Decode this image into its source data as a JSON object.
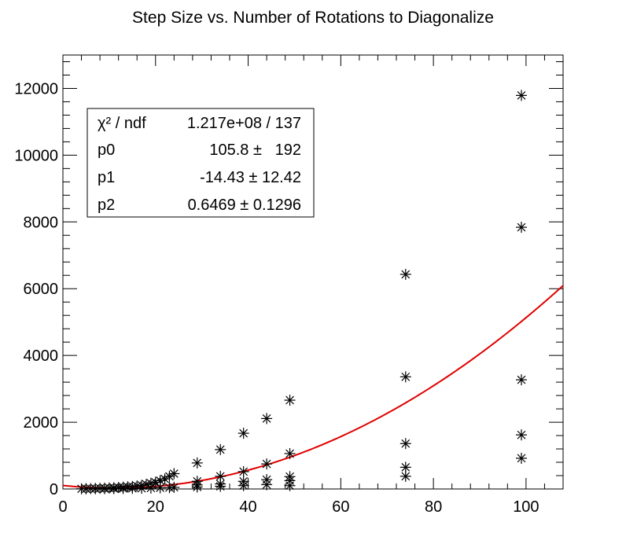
{
  "chart_data": {
    "type": "scatter",
    "title": "Step Size vs. Number of Rotations to Diagonalize",
    "xlabel": "",
    "ylabel": "",
    "xlim": [
      0,
      108
    ],
    "ylim": [
      0,
      13000
    ],
    "grid": false,
    "x_ticks": [
      0,
      20,
      40,
      60,
      80,
      100
    ],
    "y_ticks": [
      0,
      2000,
      4000,
      6000,
      8000,
      10000,
      12000
    ],
    "x_tick_labels": [
      "0",
      "20",
      "40",
      "60",
      "80",
      "100"
    ],
    "y_tick_labels": [
      "0",
      "2000",
      "4000",
      "6000",
      "8000",
      "10000",
      "12000"
    ],
    "marker": "asterisk",
    "marker_color": "#000000",
    "points": [
      [
        4,
        5
      ],
      [
        5,
        8
      ],
      [
        6,
        10
      ],
      [
        7,
        15
      ],
      [
        8,
        20
      ],
      [
        9,
        25
      ],
      [
        10,
        30
      ],
      [
        11,
        38
      ],
      [
        12,
        45
      ],
      [
        13,
        55
      ],
      [
        14,
        65
      ],
      [
        15,
        75
      ],
      [
        16,
        90
      ],
      [
        17,
        110
      ],
      [
        18,
        140
      ],
      [
        19,
        170
      ],
      [
        20,
        200
      ],
      [
        21,
        250
      ],
      [
        22,
        300
      ],
      [
        23,
        380
      ],
      [
        24,
        460
      ],
      [
        5,
        5
      ],
      [
        7,
        8
      ],
      [
        9,
        10
      ],
      [
        11,
        12
      ],
      [
        13,
        15
      ],
      [
        15,
        18
      ],
      [
        17,
        22
      ],
      [
        19,
        28
      ],
      [
        21,
        35
      ],
      [
        23,
        40
      ],
      [
        24,
        50
      ],
      [
        29,
        780
      ],
      [
        29,
        230
      ],
      [
        29,
        120
      ],
      [
        29,
        60
      ],
      [
        34,
        1180
      ],
      [
        34,
        380
      ],
      [
        34,
        150
      ],
      [
        34,
        80
      ],
      [
        39,
        1670
      ],
      [
        39,
        520
      ],
      [
        39,
        230
      ],
      [
        39,
        100
      ],
      [
        44,
        2110
      ],
      [
        44,
        750
      ],
      [
        44,
        280
      ],
      [
        44,
        130
      ],
      [
        49,
        2660
      ],
      [
        49,
        1060
      ],
      [
        49,
        370
      ],
      [
        49,
        250
      ],
      [
        49,
        100
      ],
      [
        74,
        6430
      ],
      [
        74,
        3360
      ],
      [
        74,
        1360
      ],
      [
        74,
        650
      ],
      [
        74,
        380
      ],
      [
        99,
        11790
      ],
      [
        99,
        7840
      ],
      [
        99,
        3270
      ],
      [
        99,
        1620
      ],
      [
        99,
        920
      ]
    ],
    "fit": {
      "function": "pol2",
      "color": "#e00000",
      "x_range": [
        0,
        108
      ],
      "p0": 105.8,
      "p1": -14.43,
      "p2": 0.6469
    },
    "stats_box": {
      "rows": [
        {
          "label": "χ² / ndf",
          "value": "1.217e+08 / 137"
        },
        {
          "label": "p0",
          "value": "105.8 ±   192"
        },
        {
          "label": "p1",
          "value": "-14.43 ± 12.42"
        },
        {
          "label": "p2",
          "value": "0.6469 ± 0.1296"
        }
      ]
    }
  }
}
